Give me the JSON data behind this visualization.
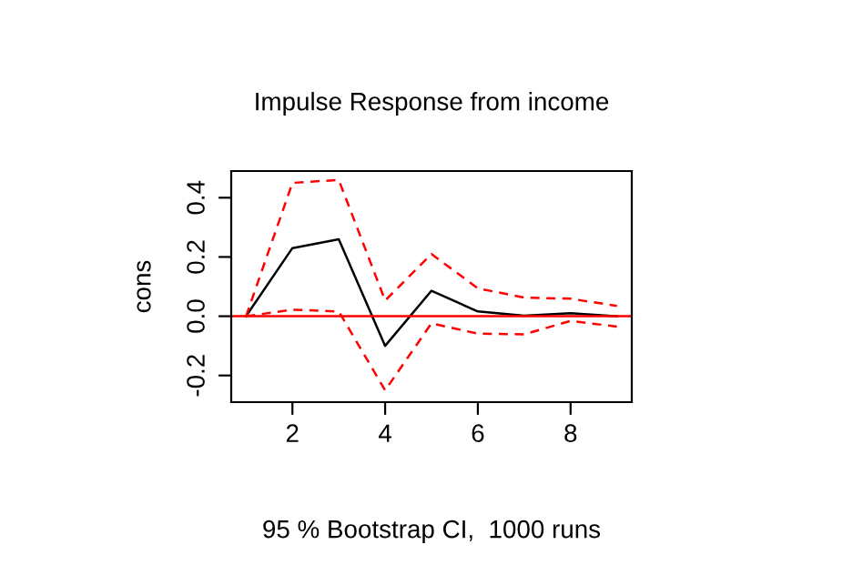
{
  "chart_data": {
    "type": "line",
    "title": "Impulse Response from income",
    "ylabel": "cons",
    "x": [
      1,
      2,
      3,
      4,
      5,
      6,
      7,
      8,
      9
    ],
    "series": [
      {
        "color": "#000000",
        "values": [
          0,
          0.23,
          0.26,
          -0.1,
          0.086,
          0.016,
          0.002,
          0.01,
          0
        ],
        "line_style": "solid"
      },
      {
        "color": "#ff0000",
        "values": [
          0,
          0.45,
          0.46,
          0.053,
          0.21,
          0.094,
          0.063,
          0.059,
          0.035
        ],
        "line_style": "dashed"
      },
      {
        "color": "#ff0000",
        "values": [
          0,
          0.022,
          0.016,
          -0.25,
          -0.024,
          -0.059,
          -0.061,
          -0.016,
          -0.035
        ],
        "line_style": "dashed"
      }
    ],
    "xlim": [
      0.68,
      9.32
    ],
    "xticks": [
      2,
      4,
      6,
      8
    ],
    "ylim": [
      -0.29,
      0.49
    ],
    "yticks": [
      -0.2,
      {
        "value": 0,
        "label": "0.0"
      },
      0.2,
      0.4
    ],
    "ref_lines": [
      {
        "axis": "y",
        "value": 0,
        "color": "#ff0000"
      }
    ],
    "annotations": [
      "95 % Bootstrap CI,  1000 runs"
    ],
    "grid": false,
    "legend": false,
    "marker": "none"
  }
}
